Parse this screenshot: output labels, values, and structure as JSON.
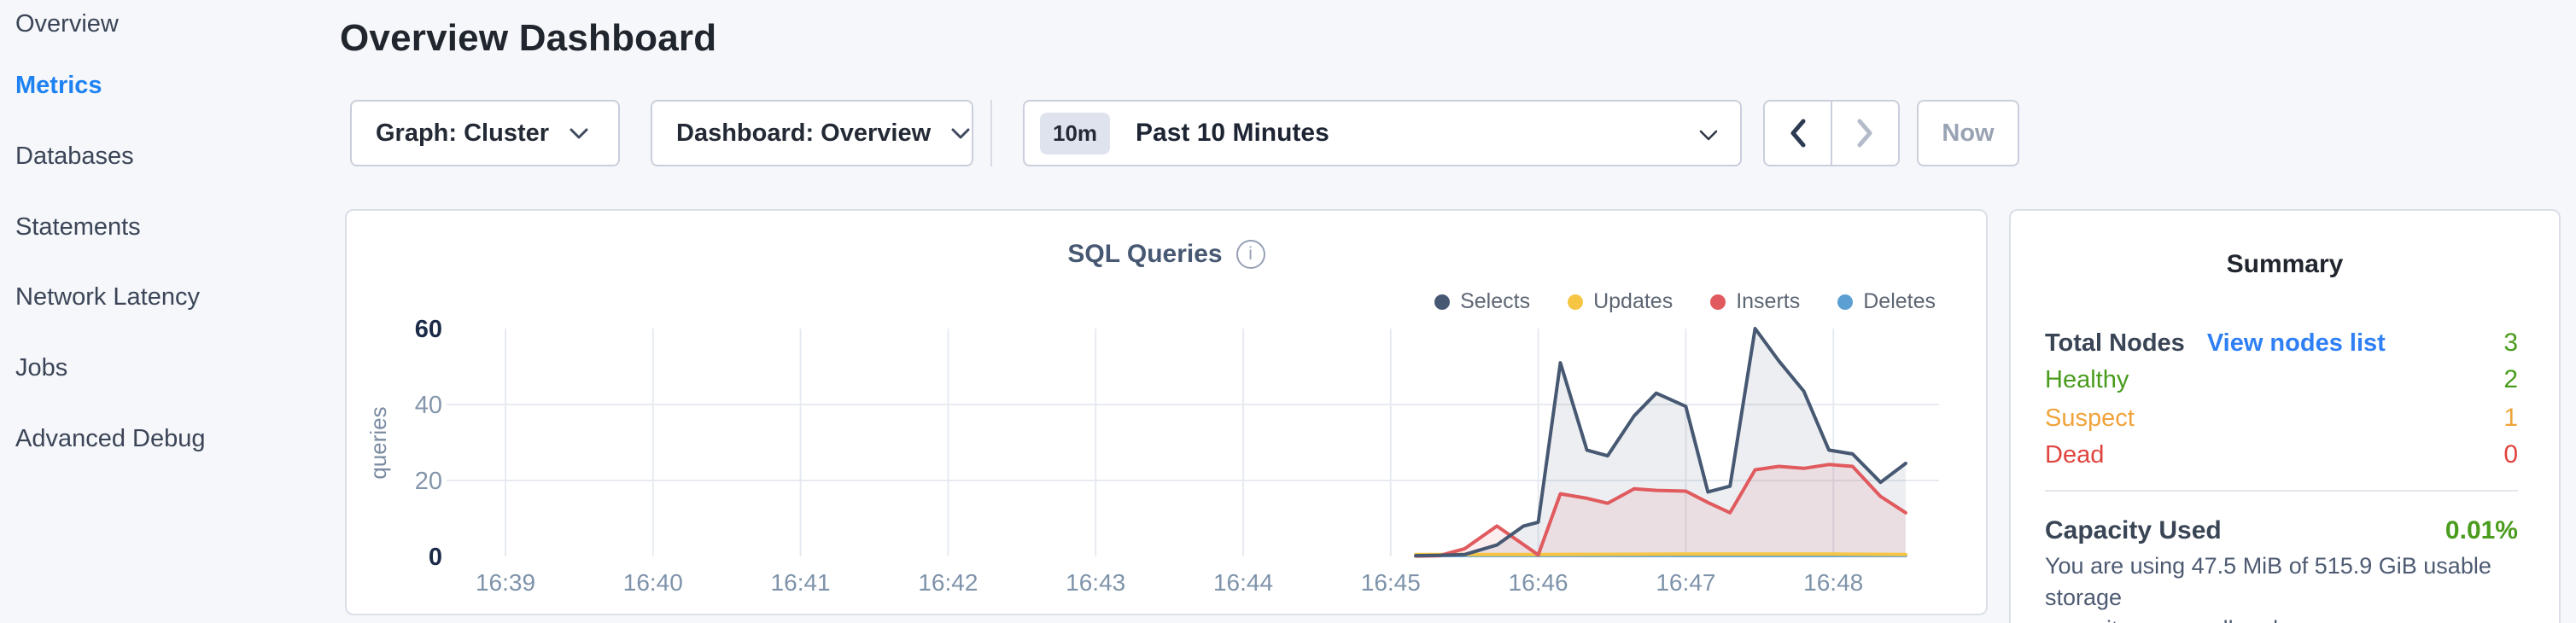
{
  "page": {
    "title": "Overview Dashboard"
  },
  "sidebar": {
    "items": [
      {
        "label": "Overview"
      },
      {
        "label": "Metrics"
      },
      {
        "label": "Databases"
      },
      {
        "label": "Statements"
      },
      {
        "label": "Network Latency"
      },
      {
        "label": "Jobs"
      },
      {
        "label": "Advanced Debug"
      }
    ],
    "active_item": "Metrics",
    "active_color": "#1f82f2"
  },
  "toolbar": {
    "graph_dropdown": "Graph: Cluster",
    "dashboard_dropdown": "Dashboard: Overview",
    "range_badge": "10m",
    "range_label": "Past 10 Minutes",
    "prev_label": "previous time window",
    "next_label": "next time window",
    "now_label": "Now"
  },
  "chart_data": {
    "type": "area",
    "title": "SQL Queries",
    "ylabel": "queries",
    "ylim": [
      0,
      60
    ],
    "yticks": [
      0,
      20,
      40,
      60
    ],
    "x_tick_labels": [
      "16:39",
      "16:40",
      "16:41",
      "16:42",
      "16:43",
      "16:44",
      "16:45",
      "16:46",
      "16:47",
      "16:48"
    ],
    "x_unit": "minutes after 16:39",
    "grid": true,
    "legend_position": "top-right",
    "series": [
      {
        "name": "Selects",
        "color": "#475872",
        "fill": "rgba(71,88,114,0.10)",
        "points": [
          [
            6.17,
            0.2
          ],
          [
            6.33,
            0.3
          ],
          [
            6.5,
            0.5
          ],
          [
            6.72,
            3
          ],
          [
            6.9,
            8
          ],
          [
            7.0,
            9
          ],
          [
            7.15,
            51
          ],
          [
            7.33,
            28
          ],
          [
            7.47,
            26.5
          ],
          [
            7.65,
            37
          ],
          [
            7.8,
            43
          ],
          [
            8.0,
            39.5
          ],
          [
            8.15,
            17
          ],
          [
            8.3,
            18.5
          ],
          [
            8.47,
            60
          ],
          [
            8.63,
            51.5
          ],
          [
            8.8,
            43.5
          ],
          [
            8.97,
            28
          ],
          [
            9.13,
            27
          ],
          [
            9.32,
            19.5
          ],
          [
            9.49,
            24.5
          ]
        ]
      },
      {
        "name": "Updates",
        "color": "#f5c543",
        "fill": null,
        "points": [
          [
            6.17,
            0.5
          ],
          [
            7.0,
            0.5
          ],
          [
            8.0,
            0.6
          ],
          [
            9.0,
            0.6
          ],
          [
            9.49,
            0.5
          ]
        ]
      },
      {
        "name": "Inserts",
        "color": "#e05a5e",
        "fill": "rgba(224,90,94,0.10)",
        "points": [
          [
            6.17,
            0.1
          ],
          [
            6.33,
            0.2
          ],
          [
            6.5,
            2
          ],
          [
            6.72,
            8
          ],
          [
            7.0,
            0.4
          ],
          [
            7.15,
            16.5
          ],
          [
            7.33,
            15.3
          ],
          [
            7.47,
            14
          ],
          [
            7.65,
            17.8
          ],
          [
            7.8,
            17.4
          ],
          [
            8.0,
            17.2
          ],
          [
            8.15,
            14.2
          ],
          [
            8.3,
            11.5
          ],
          [
            8.47,
            22.8
          ],
          [
            8.63,
            23.7
          ],
          [
            8.8,
            23.2
          ],
          [
            8.97,
            24.2
          ],
          [
            9.13,
            23.7
          ],
          [
            9.32,
            15.8
          ],
          [
            9.49,
            11.5
          ]
        ]
      },
      {
        "name": "Deletes",
        "color": "#5c9fd2",
        "fill": null,
        "points": [
          [
            6.17,
            0.25
          ],
          [
            7.0,
            0.25
          ],
          [
            8.0,
            0.25
          ],
          [
            9.0,
            0.25
          ],
          [
            9.49,
            0.25
          ]
        ]
      }
    ]
  },
  "summary": {
    "title": "Summary",
    "rows": [
      {
        "label": "Total Nodes",
        "link": "View nodes list",
        "value": "3",
        "label_color": "#394455",
        "link_color": "#2f7ff5",
        "value_color": "#4a9c1d"
      },
      {
        "label": "Healthy",
        "value": "2",
        "label_color": "#4a9c1d",
        "value_color": "#4a9c1d"
      },
      {
        "label": "Suspect",
        "value": "1",
        "label_color": "#f0a33a",
        "value_color": "#f0a33a"
      },
      {
        "label": "Dead",
        "value": "0",
        "label_color": "#e0443e",
        "value_color": "#e0443e"
      }
    ],
    "capacity_label": "Capacity Used",
    "capacity_value": "0.01%",
    "capacity_value_color": "#4a9c1d",
    "caption_line1": "You are using 47.5 MiB of 515.9 GiB usable storage",
    "caption_line2": "capacity across all nodes."
  }
}
